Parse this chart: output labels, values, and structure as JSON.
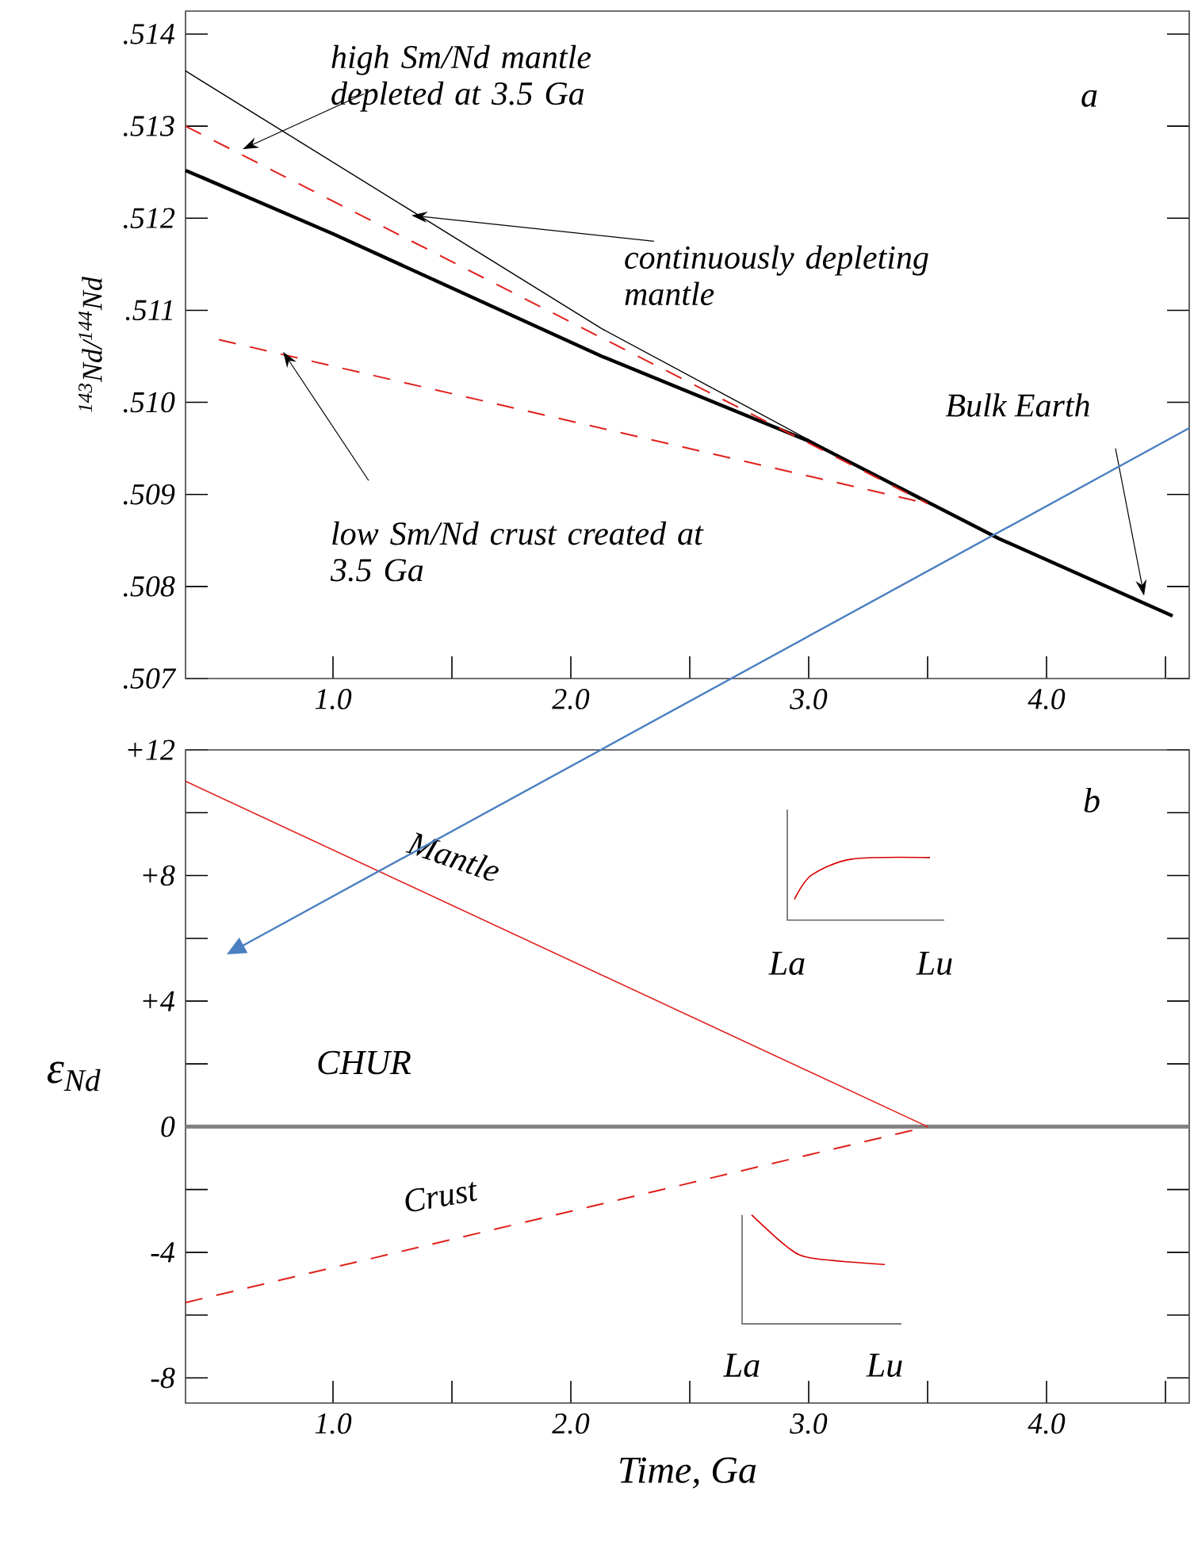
{
  "chart_data": [
    {
      "type": "line",
      "ylabel": "$^{143}$Nd/$^{144}$Nd",
      "annotations": [
        "a"
      ],
      "marker": "none",
      "xlim": [
        0.38,
        4.6
      ],
      "xticks": [
        {
          "value": 1.0,
          "label": "1.0"
        },
        {
          "value": 1.5,
          "label": null
        },
        {
          "value": 2.0,
          "label": "2.0"
        },
        {
          "value": 2.5,
          "label": null
        },
        {
          "value": 3.0,
          "label": "3.0"
        },
        {
          "value": 3.5,
          "label": null
        },
        {
          "value": 4.0,
          "label": "4.0"
        },
        {
          "value": 4.5,
          "label": null
        }
      ],
      "ylim": [
        0.507,
        0.51425
      ],
      "yticks": [
        {
          "value": 0.507,
          "label": ".507"
        },
        {
          "value": 0.508,
          "label": ".508"
        },
        {
          "value": 0.509,
          "label": ".509"
        },
        {
          "value": 0.51,
          "label": ".510"
        },
        {
          "value": 0.511,
          "label": ".511"
        },
        {
          "value": 0.512,
          "label": ".512"
        },
        {
          "value": 0.513,
          "label": ".513"
        },
        {
          "value": 0.514,
          "label": ".514"
        }
      ],
      "series": [
        {
          "name": "Bulk Earth",
          "color": "#000000",
          "line_style": "solid",
          "x": [
            0.38,
            1.0,
            2.13,
            3.0,
            3.8,
            4.53
          ],
          "values": [
            0.51252,
            0.51183,
            0.5105,
            0.50958,
            0.50852,
            0.50768
          ]
        },
        {
          "name": "continuously depleting mantle",
          "color": "#000000",
          "line_style": "solid",
          "x": [
            0.38,
            2.13,
            3.5
          ],
          "values": [
            0.5136,
            0.5108,
            0.5089
          ]
        },
        {
          "name": "high Sm/Nd mantle depleted at 3.5 Ga",
          "color": "#e0201b",
          "line_style": "dashed",
          "x": [
            0.38,
            3.5
          ],
          "values": [
            0.513,
            0.5089
          ]
        },
        {
          "name": "low Sm/Nd crust created at 3.5 Ga",
          "color": "#e0201b",
          "line_style": "dashed",
          "x": [
            0.52,
            3.5
          ],
          "values": [
            0.51068,
            0.5089
          ]
        }
      ]
    },
    {
      "type": "line",
      "xlabel": "Time, Ga",
      "ylabel": "ε$_{Nd}$",
      "annotations": [
        "b",
        "La",
        "Lu",
        "La",
        "Lu"
      ],
      "marker": "none",
      "xlim": [
        0.38,
        4.6
      ],
      "xticks": [
        {
          "value": 1.0,
          "label": "1.0"
        },
        {
          "value": 1.5,
          "label": null
        },
        {
          "value": 2.0,
          "label": "2.0"
        },
        {
          "value": 2.5,
          "label": null
        },
        {
          "value": 3.0,
          "label": "3.0"
        },
        {
          "value": 3.5,
          "label": null
        },
        {
          "value": 4.0,
          "label": "4.0"
        },
        {
          "value": 4.5,
          "label": null
        }
      ],
      "ylim": [
        -8.8,
        12
      ],
      "yticks": [
        {
          "value": -8,
          "label": "-8"
        },
        {
          "value": -6,
          "label": null
        },
        {
          "value": -4,
          "label": "-4"
        },
        {
          "value": -2,
          "label": null
        },
        {
          "value": 0,
          "label": "0"
        },
        {
          "value": 2,
          "label": null
        },
        {
          "value": 4,
          "label": "+4"
        },
        {
          "value": 6,
          "label": null
        },
        {
          "value": 8,
          "label": "+8"
        },
        {
          "value": 10,
          "label": null
        },
        {
          "value": 12,
          "label": "+12"
        }
      ],
      "ref_lines": [
        {
          "axis": "y",
          "value": 0,
          "label": "CHUR",
          "color": "#808080"
        }
      ],
      "series": [
        {
          "name": "Mantle",
          "color": "#e0201b",
          "line_style": "solid",
          "x": [
            0.38,
            3.5
          ],
          "values": [
            11,
            0
          ]
        },
        {
          "name": "Crust",
          "color": "#e0201b",
          "line_style": "dashed",
          "x": [
            0.38,
            3.5
          ],
          "values": [
            -5.6,
            0
          ]
        }
      ]
    }
  ]
}
